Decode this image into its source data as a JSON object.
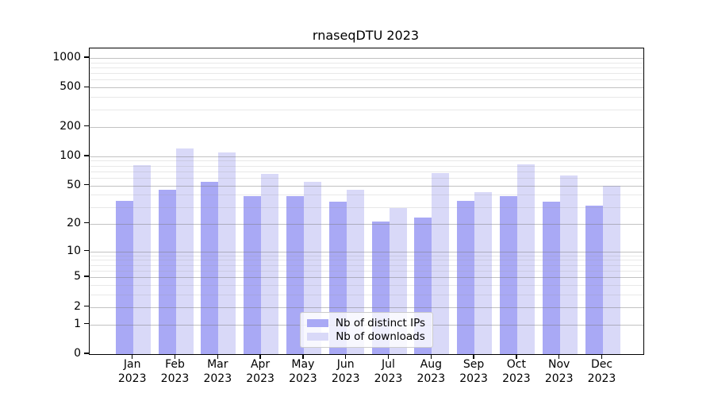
{
  "chart_data": {
    "type": "bar",
    "title": "rnaseqDTU 2023",
    "categories": [
      "Jan 2023",
      "Feb 2023",
      "Mar 2023",
      "Apr 2023",
      "May 2023",
      "Jun 2023",
      "Jul 2023",
      "Aug 2023",
      "Sep 2023",
      "Oct 2023",
      "Nov 2023",
      "Dec 2023"
    ],
    "series": [
      {
        "name": "Nb of distinct IPs",
        "color": "#a9a9f5",
        "values": [
          35,
          45,
          55,
          39,
          39,
          34,
          21,
          23,
          35,
          39,
          34,
          31
        ]
      },
      {
        "name": "Nb of downloads",
        "color": "#d9d9f8",
        "values": [
          81,
          120,
          110,
          66,
          55,
          45,
          29,
          67,
          43,
          83,
          64,
          50
        ]
      }
    ],
    "xlabel": "",
    "ylabel": "",
    "yscale": "log1p",
    "yticks": [
      0,
      1,
      2,
      5,
      10,
      20,
      50,
      100,
      200,
      500,
      1000
    ],
    "yminorticks": [
      3,
      4,
      6,
      7,
      8,
      9,
      30,
      40,
      60,
      70,
      80,
      90,
      300,
      400,
      600,
      700,
      800,
      900
    ],
    "ylim": [
      0,
      1250
    ],
    "grid": true,
    "legend_position": "bottom-center"
  },
  "style": {
    "frame_color": "#000000",
    "major_grid_color": "#c6c6c6",
    "minor_grid_color": "#e7e7e7",
    "background": "#ffffff"
  }
}
